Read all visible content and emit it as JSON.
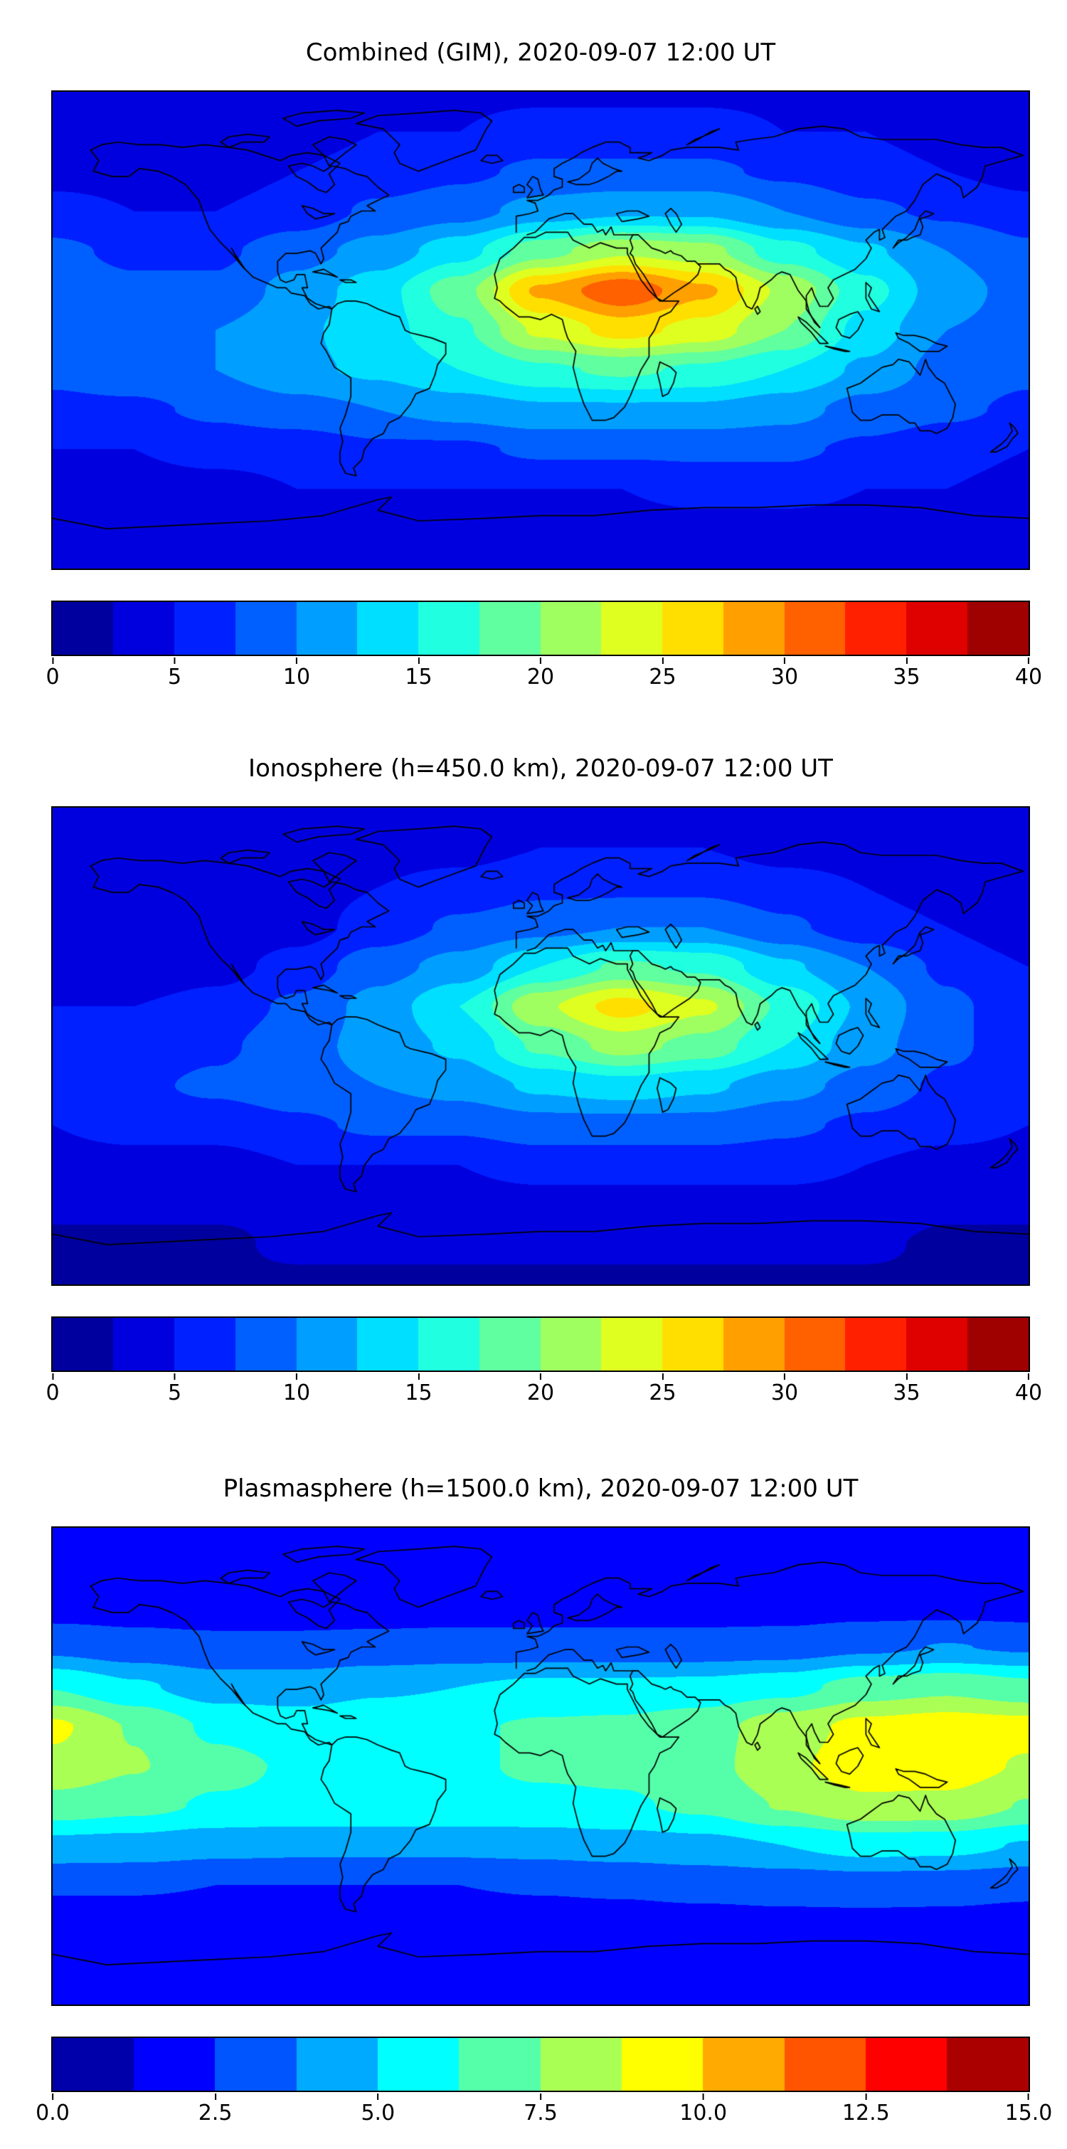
{
  "figure": {
    "background": "#ffffff",
    "text_color": "#000000",
    "accent_colormap": "jet"
  },
  "chart_data": [
    {
      "type": "filled_contour_map",
      "title": "Combined (GIM), 2020-09-07 12:00 UT",
      "date": "2020-09-07",
      "time": "12:00 UT",
      "projection": "equirectangular",
      "lon_range": [
        -180,
        180
      ],
      "lat_range": [
        -90,
        90
      ],
      "colormap": "jet",
      "vmin": 0,
      "vmax": 40,
      "level_step": 2.5,
      "colorbar_tick_values": [
        0,
        5,
        10,
        15,
        20,
        25,
        30,
        35,
        40
      ],
      "colorbar_tick_labels": [
        "0",
        "5",
        "10",
        "15",
        "20",
        "25",
        "30",
        "35",
        "40"
      ],
      "grid_lon": [
        -180,
        -150,
        -120,
        -90,
        -60,
        -30,
        0,
        30,
        60,
        90,
        120,
        150,
        180
      ],
      "grid_lat": [
        90,
        75,
        60,
        45,
        30,
        15,
        0,
        -15,
        -30,
        -45,
        -60,
        -75,
        -90
      ],
      "values": [
        [
          4.5,
          4.5,
          4.5,
          4.5,
          4.5,
          4.5,
          4.5,
          4.5,
          4.5,
          4.5,
          4.5,
          4.5,
          4.5
        ],
        [
          4,
          4,
          4,
          4,
          5,
          5,
          6,
          6,
          6,
          5,
          5,
          4,
          4
        ],
        [
          4,
          4,
          4,
          5,
          6,
          7,
          8,
          8,
          8,
          7,
          6,
          5,
          4
        ],
        [
          6,
          5,
          5,
          6,
          8,
          9,
          11,
          12,
          12,
          10,
          8,
          7,
          6
        ],
        [
          8,
          7,
          7,
          9,
          11,
          14,
          19,
          22,
          21,
          16,
          13,
          10,
          8
        ],
        [
          9,
          8,
          8,
          11,
          14,
          19,
          28,
          32,
          28,
          22,
          16,
          11,
          9
        ],
        [
          9,
          9,
          10,
          12,
          14,
          17,
          23,
          26,
          24,
          20,
          14,
          10,
          9
        ],
        [
          8,
          9,
          10,
          12,
          13,
          15,
          17,
          18,
          17,
          15,
          12,
          9,
          8
        ],
        [
          7,
          7,
          8,
          9,
          10,
          11,
          12,
          12,
          12,
          11,
          9,
          8,
          7
        ],
        [
          5,
          5,
          6,
          6,
          7,
          7,
          8,
          8,
          8,
          8,
          7,
          6,
          5
        ],
        [
          4,
          4,
          4,
          5,
          5,
          5,
          5,
          5,
          6,
          6,
          5,
          5,
          4
        ],
        [
          3,
          3,
          3,
          4,
          4,
          4,
          4,
          4,
          4,
          4,
          4,
          3,
          3
        ],
        [
          3,
          3,
          3,
          3,
          3,
          3,
          3,
          3,
          3,
          3,
          3,
          3,
          3
        ]
      ]
    },
    {
      "type": "filled_contour_map",
      "title": "Ionosphere  (h=450.0 km), 2020-09-07 12:00 UT",
      "date": "2020-09-07",
      "time": "12:00 UT",
      "height_km": 450.0,
      "projection": "equirectangular",
      "lon_range": [
        -180,
        180
      ],
      "lat_range": [
        -90,
        90
      ],
      "colormap": "jet",
      "vmin": 0,
      "vmax": 40,
      "level_step": 2.5,
      "colorbar_tick_values": [
        0,
        5,
        10,
        15,
        20,
        25,
        30,
        35,
        40
      ],
      "colorbar_tick_labels": [
        "0",
        "5",
        "10",
        "15",
        "20",
        "25",
        "30",
        "35",
        "40"
      ],
      "grid_lon": [
        -180,
        -150,
        -120,
        -90,
        -60,
        -30,
        0,
        30,
        60,
        90,
        120,
        150,
        180
      ],
      "grid_lat": [
        90,
        75,
        60,
        45,
        30,
        15,
        0,
        -15,
        -30,
        -45,
        -60,
        -75,
        -90
      ],
      "values": [
        [
          3.5,
          3.5,
          3.5,
          3.5,
          3.5,
          3.5,
          3.5,
          3.5,
          3.5,
          3.5,
          3.5,
          3.5,
          3.5
        ],
        [
          3,
          3,
          3,
          3,
          4,
          4,
          5,
          5,
          5,
          4,
          4,
          3,
          3
        ],
        [
          3,
          3,
          3,
          4,
          5,
          6,
          7,
          7,
          7,
          6,
          5,
          4,
          3
        ],
        [
          3,
          3,
          3,
          4,
          6,
          8,
          9,
          10,
          10,
          8,
          6,
          5,
          3
        ],
        [
          4,
          3,
          4,
          6,
          9,
          11,
          15,
          18,
          17,
          13,
          10,
          7,
          5
        ],
        [
          5,
          5,
          6,
          8,
          11,
          15,
          22,
          26,
          23,
          17,
          12,
          8,
          6
        ],
        [
          6,
          6,
          7,
          9,
          11,
          13,
          18,
          21,
          19,
          15,
          11,
          8,
          6
        ],
        [
          6,
          7,
          8,
          9,
          10,
          11,
          13,
          14,
          13,
          11,
          9,
          7,
          6
        ],
        [
          5,
          6,
          6,
          7,
          8,
          8,
          9,
          9,
          9,
          8,
          7,
          6,
          5
        ],
        [
          4,
          4,
          4,
          5,
          5,
          5,
          6,
          6,
          6,
          6,
          5,
          4,
          4
        ],
        [
          3,
          3,
          3,
          3,
          4,
          4,
          4,
          4,
          4,
          4,
          4,
          3,
          3
        ],
        [
          2,
          2,
          2,
          3,
          3,
          3,
          3,
          3,
          3,
          3,
          3,
          2,
          2
        ],
        [
          2,
          2,
          2,
          2,
          2,
          2,
          2,
          2,
          2,
          2,
          2,
          2,
          2
        ]
      ]
    },
    {
      "type": "filled_contour_map",
      "title": "Plasmasphere (h=1500.0 km), 2020-09-07 12:00 UT",
      "date": "2020-09-07",
      "time": "12:00 UT",
      "height_km": 1500.0,
      "projection": "equirectangular",
      "lon_range": [
        -180,
        180
      ],
      "lat_range": [
        -90,
        90
      ],
      "colormap": "jet",
      "vmin": 0,
      "vmax": 15,
      "level_step": 1.25,
      "colorbar_tick_values": [
        0,
        2.5,
        5,
        7.5,
        10,
        12.5,
        15
      ],
      "colorbar_tick_labels": [
        "0.0",
        "2.5",
        "5.0",
        "7.5",
        "10.0",
        "12.5",
        "15.0"
      ],
      "grid_lon": [
        -180,
        -150,
        -120,
        -90,
        -60,
        -30,
        0,
        30,
        60,
        90,
        120,
        150,
        180
      ],
      "grid_lat": [
        90,
        75,
        60,
        45,
        30,
        15,
        0,
        -15,
        -30,
        -45,
        -60,
        -75,
        -90
      ],
      "values": [
        [
          1.6,
          1.6,
          1.6,
          1.6,
          1.6,
          1.6,
          1.6,
          1.6,
          1.6,
          1.6,
          1.6,
          1.6,
          1.6
        ],
        [
          1.8,
          1.8,
          1.8,
          1.8,
          1.8,
          1.8,
          1.8,
          1.8,
          1.8,
          1.8,
          1.8,
          1.8,
          1.8
        ],
        [
          2,
          2,
          2,
          2,
          2,
          2,
          2,
          2,
          2,
          2,
          2.1,
          2.1,
          2
        ],
        [
          3.4,
          3,
          2.8,
          2.8,
          2.9,
          3,
          3,
          3,
          3,
          3.1,
          3.5,
          3.8,
          3.6
        ],
        [
          6.2,
          5.2,
          4.4,
          4.4,
          4.8,
          5,
          5.3,
          5.3,
          5.4,
          5.8,
          6.8,
          7.2,
          6.6
        ],
        [
          9,
          7.4,
          6,
          5.6,
          5.9,
          6.1,
          6.4,
          6.5,
          7,
          8.2,
          9.1,
          9.4,
          9.2
        ],
        [
          8.4,
          7.6,
          6.6,
          6.1,
          6,
          6.1,
          6.4,
          6.5,
          7,
          8.5,
          9.4,
          9.4,
          8.6
        ],
        [
          7,
          6.6,
          6.1,
          6,
          6,
          6,
          6,
          6.1,
          6.5,
          7.6,
          8.5,
          8.4,
          7.4
        ],
        [
          4.6,
          4.5,
          4.2,
          4.1,
          4.1,
          4.1,
          4.2,
          4.4,
          4.6,
          5,
          5.5,
          5.4,
          4.9
        ],
        [
          2.6,
          2.6,
          2.5,
          2.5,
          2.5,
          2.5,
          2.6,
          2.7,
          2.9,
          3,
          3.1,
          3,
          2.8
        ],
        [
          2,
          2,
          2,
          2,
          2,
          2,
          2,
          2,
          2,
          2.1,
          2.1,
          2.1,
          2
        ],
        [
          1.7,
          1.7,
          1.7,
          1.7,
          1.7,
          1.7,
          1.7,
          1.7,
          1.7,
          1.7,
          1.7,
          1.7,
          1.7
        ],
        [
          1.6,
          1.6,
          1.6,
          1.6,
          1.6,
          1.6,
          1.6,
          1.6,
          1.6,
          1.6,
          1.6,
          1.6,
          1.6
        ]
      ]
    }
  ]
}
